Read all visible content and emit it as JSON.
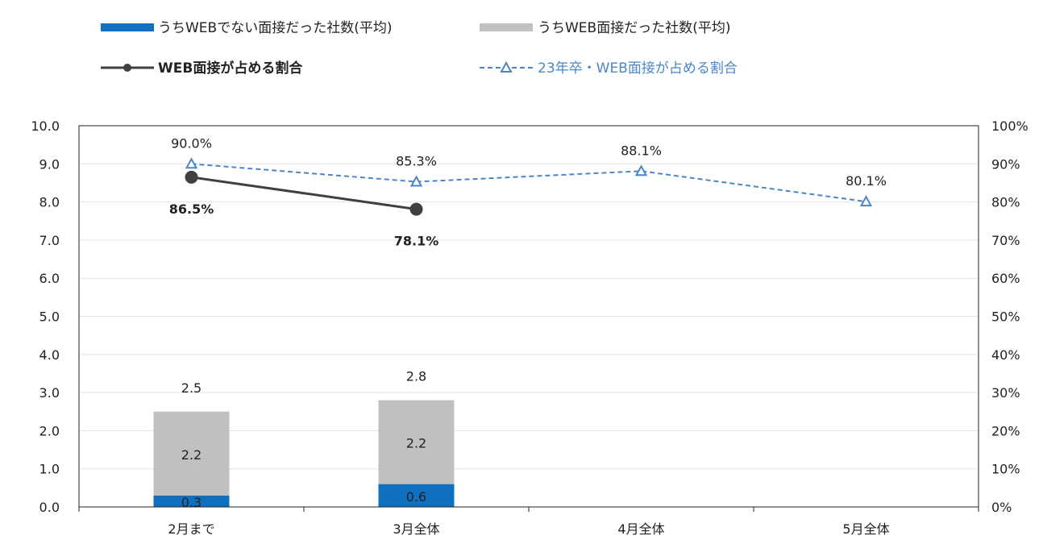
{
  "chart_data": {
    "type": "bar+line",
    "title": "",
    "categories": [
      "2月まで",
      "3月全体",
      "4月全体",
      "5月全体"
    ],
    "y_left": {
      "min": 0,
      "max": 10,
      "step": 1,
      "tick_labels": [
        "0.0",
        "1.0",
        "2.0",
        "3.0",
        "4.0",
        "5.0",
        "6.0",
        "7.0",
        "8.0",
        "9.0",
        "10.0"
      ]
    },
    "y_right": {
      "min": 0,
      "max": 100,
      "step": 10,
      "tick_labels": [
        "0%",
        "10%",
        "20%",
        "30%",
        "40%",
        "50%",
        "60%",
        "70%",
        "80%",
        "90%",
        "100%"
      ]
    },
    "gridlines": "horizontal",
    "legend_position": "top",
    "bar_series": [
      {
        "name": "うちWEBでない面接だった社数(平均)",
        "color": "#1070c0",
        "axis": "left",
        "values": [
          0.3,
          0.6,
          null,
          null
        ],
        "labels": [
          "0.3",
          "0.6",
          null,
          null
        ]
      },
      {
        "name": "うちWEB面接だった社数(平均)",
        "color": "#c0c0c0",
        "axis": "left",
        "values": [
          2.2,
          2.2,
          null,
          null
        ],
        "labels": [
          "2.2",
          "2.2",
          null,
          null
        ]
      }
    ],
    "bar_totals": [
      "2.5",
      "2.8",
      null,
      null
    ],
    "bar_total_values": [
      2.5,
      2.8,
      null,
      null
    ],
    "line_series": [
      {
        "name": "WEB面接が占める割合",
        "color": "#404040",
        "style": "solid",
        "marker": "circle",
        "axis": "right",
        "values": [
          86.5,
          78.1,
          null,
          null
        ],
        "labels": [
          "86.5%",
          "78.1%",
          null,
          null
        ]
      },
      {
        "name": "23年卒・WEB面接が占める割合",
        "color": "#4a86c8",
        "style": "dashed",
        "marker": "triangle",
        "axis": "right",
        "values": [
          90.0,
          85.3,
          88.1,
          80.1
        ],
        "labels": [
          "90.0%",
          "85.3%",
          "88.1%",
          "80.1%"
        ]
      }
    ]
  }
}
